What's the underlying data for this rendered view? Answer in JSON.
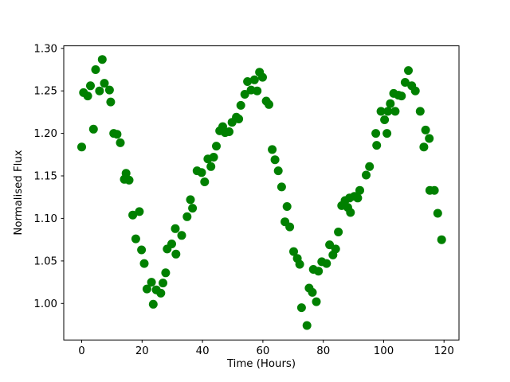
{
  "figure": {
    "background": "#ffffff",
    "spine_color": "#000000",
    "text_color": "#000000"
  },
  "chart_data": {
    "type": "scatter",
    "title": "",
    "xlabel": "Time (Hours)",
    "ylabel": "Normalised Flux",
    "marker_color": "#008000",
    "marker_shape": "circle",
    "grid": false,
    "legend": "none",
    "xlim": [
      -5.95,
      124.95
    ],
    "ylim": [
      0.957,
      1.303
    ],
    "x_ticks": [
      0,
      20,
      40,
      60,
      80,
      100,
      120
    ],
    "x_tick_labels": [
      "0",
      "20",
      "40",
      "60",
      "80",
      "100",
      "120"
    ],
    "y_ticks": [
      1.0,
      1.05,
      1.1,
      1.15,
      1.2,
      1.25,
      1.3
    ],
    "y_tick_labels": [
      "1.00",
      "1.05",
      "1.10",
      "1.15",
      "1.20",
      "1.25",
      "1.30"
    ],
    "points": [
      [
        0.0,
        1.184
      ],
      [
        0.6,
        1.248
      ],
      [
        2.0,
        1.244
      ],
      [
        2.9,
        1.256
      ],
      [
        3.9,
        1.205
      ],
      [
        4.6,
        1.275
      ],
      [
        5.9,
        1.25
      ],
      [
        6.8,
        1.287
      ],
      [
        7.5,
        1.259
      ],
      [
        9.2,
        1.251
      ],
      [
        9.6,
        1.237
      ],
      [
        10.6,
        1.2
      ],
      [
        11.7,
        1.199
      ],
      [
        12.8,
        1.189
      ],
      [
        14.1,
        1.146
      ],
      [
        14.7,
        1.153
      ],
      [
        15.7,
        1.145
      ],
      [
        16.9,
        1.104
      ],
      [
        17.9,
        1.076
      ],
      [
        19.1,
        1.108
      ],
      [
        19.8,
        1.063
      ],
      [
        20.7,
        1.047
      ],
      [
        21.6,
        1.017
      ],
      [
        23.1,
        1.025
      ],
      [
        23.7,
        0.999
      ],
      [
        24.7,
        1.016
      ],
      [
        26.2,
        1.012
      ],
      [
        26.9,
        1.024
      ],
      [
        27.8,
        1.036
      ],
      [
        28.3,
        1.064
      ],
      [
        29.8,
        1.07
      ],
      [
        31.0,
        1.088
      ],
      [
        31.2,
        1.058
      ],
      [
        33.1,
        1.08
      ],
      [
        34.9,
        1.102
      ],
      [
        36.0,
        1.122
      ],
      [
        36.7,
        1.112
      ],
      [
        38.2,
        1.156
      ],
      [
        39.7,
        1.154
      ],
      [
        40.7,
        1.143
      ],
      [
        41.8,
        1.17
      ],
      [
        42.8,
        1.161
      ],
      [
        43.7,
        1.172
      ],
      [
        44.6,
        1.185
      ],
      [
        45.7,
        1.203
      ],
      [
        46.7,
        1.208
      ],
      [
        47.5,
        1.201
      ],
      [
        48.8,
        1.202
      ],
      [
        49.8,
        1.213
      ],
      [
        51.2,
        1.219
      ],
      [
        52.0,
        1.217
      ],
      [
        52.7,
        1.233
      ],
      [
        54.0,
        1.246
      ],
      [
        54.9,
        1.261
      ],
      [
        56.1,
        1.251
      ],
      [
        57.2,
        1.263
      ],
      [
        58.1,
        1.25
      ],
      [
        58.9,
        1.272
      ],
      [
        59.9,
        1.266
      ],
      [
        61.1,
        1.238
      ],
      [
        62.0,
        1.234
      ],
      [
        63.1,
        1.181
      ],
      [
        64.0,
        1.169
      ],
      [
        65.1,
        1.156
      ],
      [
        66.2,
        1.137
      ],
      [
        67.3,
        1.096
      ],
      [
        68.0,
        1.114
      ],
      [
        68.9,
        1.09
      ],
      [
        70.2,
        1.061
      ],
      [
        71.4,
        1.053
      ],
      [
        72.2,
        1.046
      ],
      [
        72.8,
        0.995
      ],
      [
        74.6,
        0.974
      ],
      [
        75.3,
        1.018
      ],
      [
        76.4,
        1.013
      ],
      [
        76.7,
        1.04
      ],
      [
        77.7,
        1.002
      ],
      [
        78.4,
        1.038
      ],
      [
        79.5,
        1.049
      ],
      [
        81.1,
        1.047
      ],
      [
        82.1,
        1.069
      ],
      [
        83.2,
        1.057
      ],
      [
        84.1,
        1.064
      ],
      [
        85.0,
        1.084
      ],
      [
        86.1,
        1.115
      ],
      [
        87.2,
        1.121
      ],
      [
        88.1,
        1.113
      ],
      [
        88.7,
        1.124
      ],
      [
        89.0,
        1.107
      ],
      [
        90.3,
        1.126
      ],
      [
        91.4,
        1.124
      ],
      [
        92.1,
        1.133
      ],
      [
        94.2,
        1.151
      ],
      [
        95.3,
        1.161
      ],
      [
        97.4,
        1.2
      ],
      [
        97.7,
        1.186
      ],
      [
        99.1,
        1.226
      ],
      [
        100.3,
        1.216
      ],
      [
        101.1,
        1.2
      ],
      [
        101.4,
        1.226
      ],
      [
        102.2,
        1.235
      ],
      [
        103.3,
        1.247
      ],
      [
        103.8,
        1.226
      ],
      [
        104.9,
        1.245
      ],
      [
        105.9,
        1.244
      ],
      [
        107.1,
        1.26
      ],
      [
        108.2,
        1.274
      ],
      [
        109.3,
        1.256
      ],
      [
        110.5,
        1.25
      ],
      [
        112.1,
        1.226
      ],
      [
        113.3,
        1.184
      ],
      [
        113.9,
        1.204
      ],
      [
        115.1,
        1.194
      ],
      [
        115.3,
        1.133
      ],
      [
        116.8,
        1.133
      ],
      [
        117.9,
        1.106
      ],
      [
        119.2,
        1.075
      ]
    ]
  }
}
